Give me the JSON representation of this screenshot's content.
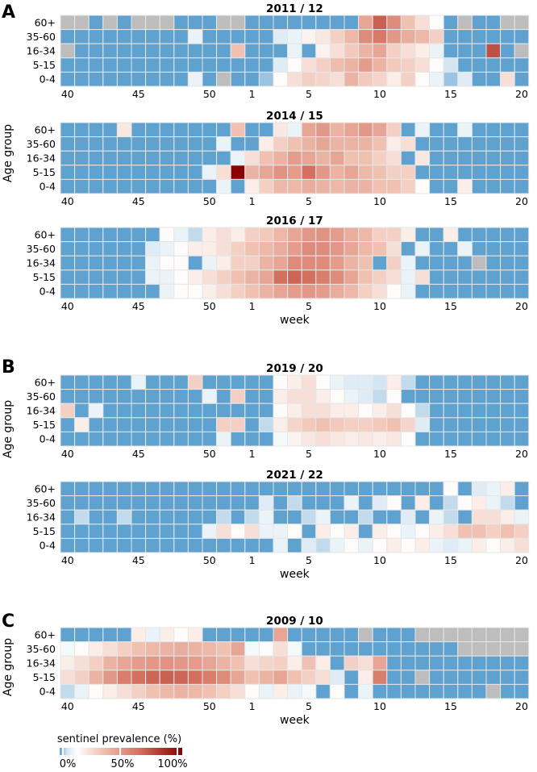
{
  "figure": {
    "panel_letters": [
      "A",
      "B",
      "C"
    ],
    "y_axis_title": "Age group",
    "x_axis_title": "week"
  },
  "colorbar": {
    "title": "sentinel prevalence (%)",
    "ticks": [
      "0%",
      "50%",
      "100%"
    ],
    "stops": [
      "#5fa2d0",
      "#d4e6f1",
      "#ffffff",
      "#f0c0b0",
      "#d47060",
      "#8b0000"
    ],
    "missing_color": "#bdbdbd"
  },
  "chart_data": [
    {
      "type": "heatmap",
      "panel": "A",
      "title": "2011 / 12",
      "xlabel": "",
      "ylabel": "Age group",
      "rows": [
        "60+",
        "35-60",
        "16-34",
        "5-15",
        "0-4"
      ],
      "weeks": [
        40,
        41,
        42,
        43,
        44,
        45,
        46,
        47,
        48,
        49,
        50,
        51,
        52,
        1,
        2,
        3,
        4,
        5,
        6,
        7,
        8,
        9,
        10,
        11,
        12,
        13,
        14,
        15,
        16,
        17,
        18,
        19,
        20
      ],
      "xtick_labels": [
        "40",
        "45",
        "50",
        "1",
        "5",
        "10",
        "15",
        "20"
      ],
      "values": [
        [
          -1,
          -1,
          0,
          -1,
          0,
          -1,
          -1,
          -1,
          0,
          0,
          0,
          -1,
          -1,
          0,
          0,
          0,
          0,
          0,
          0,
          0,
          0,
          45,
          70,
          55,
          35,
          25,
          15,
          0,
          -1,
          0,
          0,
          -1,
          -1
        ],
        [
          0,
          0,
          0,
          0,
          0,
          0,
          0,
          0,
          0,
          10,
          0,
          0,
          0,
          0,
          0,
          8,
          10,
          18,
          22,
          30,
          38,
          55,
          62,
          50,
          42,
          38,
          30,
          0,
          0,
          0,
          0,
          0,
          0
        ],
        [
          -1,
          0,
          0,
          0,
          0,
          0,
          0,
          0,
          0,
          0,
          0,
          0,
          35,
          0,
          0,
          0,
          10,
          0,
          18,
          25,
          32,
          40,
          45,
          30,
          25,
          20,
          10,
          0,
          0,
          0,
          75,
          0,
          -1
        ],
        [
          0,
          0,
          0,
          0,
          0,
          0,
          0,
          0,
          0,
          0,
          0,
          0,
          0,
          0,
          0,
          8,
          15,
          25,
          30,
          36,
          40,
          48,
          40,
          32,
          30,
          25,
          15,
          6,
          0,
          0,
          0,
          0,
          0
        ],
        [
          0,
          0,
          0,
          0,
          0,
          0,
          0,
          0,
          0,
          10,
          0,
          -1,
          0,
          0,
          3,
          15,
          25,
          30,
          28,
          25,
          40,
          32,
          28,
          20,
          30,
          15,
          10,
          3,
          8,
          0,
          0,
          25,
          0
        ]
      ]
    },
    {
      "type": "heatmap",
      "panel": "A",
      "title": "2014 / 15",
      "xlabel": "",
      "ylabel": "Age group",
      "rows": [
        "60+",
        "35-60",
        "16-34",
        "5-15",
        "0-4"
      ],
      "weeks": [
        40,
        41,
        42,
        43,
        44,
        45,
        46,
        47,
        48,
        49,
        50,
        51,
        52,
        1,
        2,
        3,
        4,
        5,
        6,
        7,
        8,
        9,
        10,
        11,
        12,
        13,
        14,
        15,
        16,
        17,
        18,
        19,
        20
      ],
      "xtick_labels": [
        "40",
        "45",
        "50",
        "1",
        "5",
        "10",
        "15",
        "20"
      ],
      "values": [
        [
          0,
          0,
          0,
          0,
          22,
          0,
          0,
          0,
          0,
          0,
          0,
          0,
          35,
          0,
          0,
          22,
          10,
          45,
          50,
          40,
          45,
          50,
          45,
          30,
          0,
          10,
          0,
          0,
          10,
          0,
          0,
          0,
          0
        ],
        [
          0,
          0,
          0,
          0,
          0,
          0,
          0,
          0,
          0,
          0,
          0,
          10,
          0,
          0,
          20,
          30,
          35,
          40,
          45,
          40,
          40,
          40,
          35,
          20,
          25,
          0,
          0,
          0,
          0,
          0,
          0,
          0,
          0
        ],
        [
          0,
          0,
          0,
          0,
          0,
          0,
          0,
          0,
          0,
          0,
          0,
          0,
          10,
          25,
          35,
          40,
          48,
          45,
          40,
          45,
          35,
          35,
          30,
          25,
          0,
          22,
          0,
          0,
          0,
          0,
          0,
          0,
          0
        ],
        [
          0,
          0,
          0,
          0,
          0,
          0,
          0,
          0,
          0,
          0,
          10,
          25,
          100,
          40,
          45,
          52,
          48,
          65,
          50,
          40,
          45,
          38,
          35,
          30,
          30,
          0,
          0,
          0,
          0,
          0,
          0,
          0,
          0
        ],
        [
          0,
          0,
          0,
          0,
          0,
          0,
          0,
          0,
          0,
          0,
          0,
          10,
          0,
          20,
          30,
          38,
          38,
          42,
          40,
          38,
          40,
          40,
          35,
          35,
          30,
          15,
          0,
          0,
          20,
          0,
          0,
          0,
          0
        ]
      ]
    },
    {
      "type": "heatmap",
      "panel": "A",
      "title": "2016 / 17",
      "xlabel": "week",
      "ylabel": "Age group",
      "rows": [
        "60+",
        "35-60",
        "16-34",
        "5-15",
        "0-4"
      ],
      "weeks": [
        40,
        41,
        42,
        43,
        44,
        45,
        46,
        47,
        48,
        49,
        50,
        51,
        52,
        1,
        2,
        3,
        4,
        5,
        6,
        7,
        8,
        9,
        10,
        11,
        12,
        13,
        14,
        15,
        16,
        17,
        18,
        19,
        20
      ],
      "xtick_labels": [
        "40",
        "45",
        "50",
        "1",
        "5",
        "10",
        "15",
        "20"
      ],
      "values": [
        [
          0,
          0,
          0,
          0,
          0,
          0,
          0,
          15,
          10,
          5,
          20,
          25,
          20,
          30,
          32,
          38,
          45,
          50,
          52,
          48,
          42,
          38,
          30,
          30,
          20,
          0,
          0,
          20,
          0,
          0,
          0,
          0,
          0
        ],
        [
          0,
          0,
          0,
          0,
          0,
          0,
          8,
          10,
          15,
          20,
          20,
          25,
          30,
          35,
          38,
          42,
          48,
          55,
          55,
          50,
          45,
          38,
          35,
          25,
          0,
          10,
          0,
          0,
          10,
          0,
          0,
          0,
          0
        ],
        [
          0,
          0,
          0,
          0,
          0,
          0,
          10,
          15,
          15,
          0,
          10,
          20,
          30,
          30,
          40,
          45,
          55,
          55,
          55,
          48,
          40,
          35,
          0,
          30,
          10,
          0,
          0,
          0,
          0,
          -1,
          0,
          0,
          0
        ],
        [
          0,
          0,
          0,
          0,
          0,
          0,
          10,
          10,
          15,
          20,
          25,
          30,
          35,
          40,
          45,
          65,
          68,
          65,
          60,
          55,
          45,
          35,
          30,
          25,
          10,
          25,
          0,
          0,
          0,
          0,
          0,
          0,
          0
        ],
        [
          0,
          0,
          0,
          0,
          0,
          0,
          0,
          10,
          15,
          15,
          20,
          25,
          30,
          35,
          40,
          45,
          48,
          50,
          48,
          42,
          38,
          30,
          25,
          15,
          10,
          0,
          0,
          0,
          0,
          0,
          0,
          0,
          0
        ]
      ]
    },
    {
      "type": "heatmap",
      "panel": "B",
      "title": "2019 / 20",
      "xlabel": "",
      "ylabel": "Age group",
      "rows": [
        "60+",
        "35-60",
        "16-34",
        "5-15",
        "0-4"
      ],
      "weeks": [
        40,
        41,
        42,
        43,
        44,
        45,
        46,
        47,
        48,
        49,
        50,
        51,
        52,
        1,
        2,
        3,
        4,
        5,
        6,
        7,
        8,
        9,
        10,
        11,
        12,
        13,
        14,
        15,
        16,
        17,
        18,
        19,
        20
      ],
      "xtick_labels": [
        "40",
        "45",
        "50",
        "1",
        "5",
        "10",
        "15",
        "20"
      ],
      "values": [
        [
          0,
          0,
          0,
          0,
          0,
          10,
          0,
          0,
          0,
          30,
          0,
          0,
          0,
          0,
          0,
          15,
          20,
          25,
          15,
          10,
          8,
          8,
          6,
          20,
          5,
          0,
          0,
          0,
          0,
          0,
          0,
          0,
          0
        ],
        [
          0,
          0,
          0,
          0,
          0,
          0,
          0,
          0,
          0,
          0,
          10,
          0,
          30,
          0,
          0,
          20,
          25,
          25,
          20,
          15,
          10,
          8,
          5,
          15,
          0,
          0,
          0,
          0,
          0,
          0,
          0,
          0,
          0
        ],
        [
          30,
          0,
          10,
          0,
          0,
          0,
          0,
          0,
          0,
          0,
          0,
          0,
          0,
          0,
          0,
          15,
          20,
          25,
          25,
          20,
          20,
          15,
          20,
          25,
          15,
          5,
          0,
          0,
          0,
          0,
          0,
          0,
          0
        ],
        [
          0,
          20,
          0,
          0,
          0,
          0,
          0,
          0,
          0,
          0,
          0,
          30,
          30,
          0,
          5,
          20,
          28,
          32,
          35,
          32,
          30,
          30,
          32,
          35,
          28,
          8,
          0,
          0,
          0,
          0,
          0,
          0,
          0
        ],
        [
          0,
          0,
          0,
          0,
          0,
          0,
          0,
          0,
          0,
          0,
          0,
          10,
          0,
          0,
          0,
          12,
          18,
          22,
          25,
          22,
          20,
          22,
          20,
          22,
          15,
          0,
          0,
          0,
          0,
          0,
          0,
          0,
          0
        ]
      ]
    },
    {
      "type": "heatmap",
      "panel": "B",
      "title": "2021 / 22",
      "xlabel": "week",
      "ylabel": "Age group",
      "rows": [
        "60+",
        "35-60",
        "16-34",
        "5-15",
        "0-4"
      ],
      "weeks": [
        40,
        41,
        42,
        43,
        44,
        45,
        46,
        47,
        48,
        49,
        50,
        51,
        52,
        1,
        2,
        3,
        4,
        5,
        6,
        7,
        8,
        9,
        10,
        11,
        12,
        13,
        14,
        15,
        16,
        17,
        18,
        19,
        20
      ],
      "xtick_labels": [
        "40",
        "45",
        "50",
        "1",
        "5",
        "10",
        "15",
        "20"
      ],
      "values": [
        [
          0,
          0,
          0,
          0,
          0,
          0,
          0,
          0,
          0,
          0,
          0,
          0,
          0,
          0,
          0,
          0,
          0,
          0,
          0,
          0,
          0,
          0,
          0,
          0,
          0,
          0,
          0,
          15,
          0,
          8,
          10,
          20,
          0
        ],
        [
          0,
          0,
          0,
          0,
          0,
          0,
          0,
          0,
          0,
          0,
          0,
          0,
          0,
          0,
          8,
          0,
          5,
          0,
          0,
          0,
          10,
          0,
          8,
          15,
          0,
          20,
          0,
          5,
          15,
          20,
          10,
          5,
          0
        ],
        [
          0,
          5,
          0,
          0,
          5,
          0,
          0,
          0,
          0,
          0,
          0,
          5,
          0,
          5,
          10,
          0,
          0,
          5,
          10,
          0,
          0,
          5,
          0,
          0,
          8,
          0,
          10,
          5,
          0,
          25,
          25,
          20,
          10
        ],
        [
          0,
          0,
          0,
          0,
          0,
          0,
          0,
          0,
          0,
          0,
          10,
          25,
          15,
          25,
          10,
          10,
          15,
          0,
          20,
          15,
          20,
          0,
          20,
          15,
          10,
          15,
          20,
          25,
          35,
          35,
          30,
          35,
          30
        ],
        [
          0,
          0,
          0,
          0,
          0,
          0,
          0,
          0,
          0,
          0,
          0,
          0,
          0,
          0,
          0,
          10,
          0,
          8,
          5,
          10,
          15,
          10,
          15,
          20,
          15,
          20,
          10,
          8,
          10,
          20,
          15,
          20,
          25
        ]
      ]
    },
    {
      "type": "heatmap",
      "panel": "C",
      "title": "2009 / 10",
      "xlabel": "week",
      "ylabel": "Age group",
      "rows": [
        "60+",
        "35-60",
        "16-34",
        "5-15",
        "0-4"
      ],
      "weeks": [
        40,
        41,
        42,
        43,
        44,
        45,
        46,
        47,
        48,
        49,
        50,
        51,
        52,
        1,
        2,
        3,
        4,
        5,
        6,
        7,
        8,
        9,
        10,
        11,
        12,
        13,
        14,
        15,
        16,
        17,
        18,
        19,
        20
      ],
      "xtick_labels": [
        "40",
        "45",
        "50",
        "1",
        "5",
        "10",
        "15",
        "20"
      ],
      "values": [
        [
          0,
          0,
          0,
          0,
          0,
          20,
          10,
          20,
          15,
          20,
          0,
          0,
          0,
          0,
          0,
          45,
          0,
          0,
          0,
          0,
          0,
          -1,
          0,
          0,
          0,
          -1,
          -1,
          -1,
          -1,
          -1,
          -1,
          -1,
          -1
        ],
        [
          12,
          15,
          20,
          25,
          30,
          35,
          38,
          40,
          42,
          40,
          38,
          35,
          45,
          12,
          15,
          25,
          12,
          0,
          0,
          0,
          0,
          0,
          0,
          0,
          0,
          0,
          0,
          0,
          -1,
          -1,
          -1,
          -1,
          -1
        ],
        [
          20,
          25,
          30,
          40,
          45,
          48,
          50,
          52,
          50,
          48,
          45,
          40,
          35,
          25,
          28,
          30,
          20,
          35,
          20,
          0,
          30,
          25,
          45,
          0,
          0,
          0,
          0,
          0,
          0,
          0,
          0,
          0,
          0
        ],
        [
          25,
          30,
          40,
          50,
          60,
          65,
          68,
          70,
          68,
          65,
          60,
          55,
          45,
          35,
          40,
          45,
          35,
          30,
          25,
          8,
          0,
          20,
          60,
          0,
          0,
          -1,
          0,
          0,
          0,
          0,
          0,
          0,
          0
        ],
        [
          5,
          10,
          15,
          20,
          25,
          30,
          35,
          38,
          40,
          38,
          35,
          30,
          25,
          15,
          10,
          20,
          10,
          12,
          0,
          15,
          0,
          10,
          0,
          0,
          0,
          0,
          0,
          0,
          0,
          0,
          -1,
          0,
          0
        ]
      ]
    }
  ]
}
